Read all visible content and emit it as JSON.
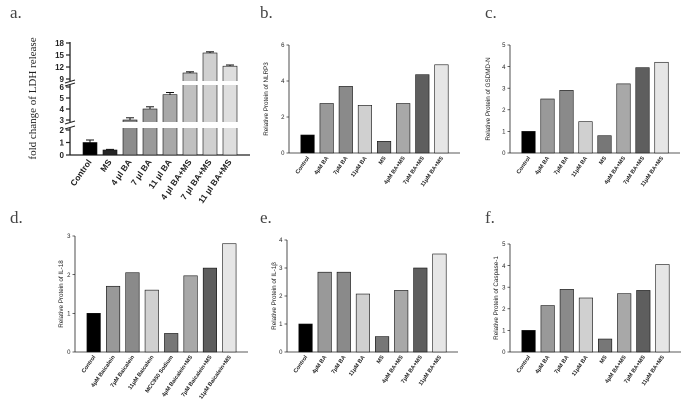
{
  "chart_data": [
    {
      "type": "bar",
      "panel_label": "a.",
      "ylabel": "fold change of LDH release",
      "categories": [
        "Control",
        "MS",
        "4 μl BA",
        "7 μl BA",
        "11 μl BA",
        "4 μl BA+MS",
        "7 μl BA+MS",
        "11 μl BA+MS"
      ],
      "values": [
        1.0,
        0.4,
        3.0,
        4.0,
        5.3,
        10.5,
        15.5,
        12.2
      ],
      "errors": [
        0.2,
        0.05,
        0.2,
        0.2,
        0.2,
        0.3,
        0.3,
        0.3
      ],
      "colors": [
        "#000000",
        "#262626",
        "#8c8c8c",
        "#9a9a9a",
        "#a8a8a8",
        "#c0c0c0",
        "#d0d0d0",
        "#dedede"
      ],
      "axis_breaks": [
        [
          2,
          3
        ],
        [
          7,
          9
        ]
      ],
      "yticks": [
        0,
        1,
        2,
        3,
        4,
        5,
        6,
        9,
        12,
        15,
        18
      ],
      "ylim": [
        0,
        18
      ]
    },
    {
      "type": "bar",
      "panel_label": "b.",
      "ylabel": "Relative Protein of NLRP3",
      "categories": [
        "Control",
        "4μM BA",
        "7μM BA",
        "11μM BA",
        "MS",
        "4μM BA+MS",
        "7μM BA+MS",
        "11μM BA+MS"
      ],
      "values": [
        1.0,
        2.75,
        3.7,
        2.65,
        0.65,
        2.75,
        4.35,
        4.9
      ],
      "colors": [
        "#000000",
        "#999999",
        "#8a8a8a",
        "#d0d0d0",
        "#777777",
        "#a8a8a8",
        "#5e5e5e",
        "#e6e6e6"
      ],
      "yticks": [
        0,
        2,
        4,
        6
      ],
      "ylim": [
        0,
        6
      ]
    },
    {
      "type": "bar",
      "panel_label": "c.",
      "ylabel": "Relative Protein of GSDMD-N",
      "categories": [
        "Control",
        "4μM BA",
        "7μM BA",
        "11μM BA",
        "MS",
        "4μM BA+MS",
        "7μM BA+MS",
        "11μM BA+MS"
      ],
      "values": [
        1.0,
        2.5,
        2.9,
        1.45,
        0.8,
        3.2,
        3.95,
        4.2
      ],
      "colors": [
        "#000000",
        "#999999",
        "#8a8a8a",
        "#d0d0d0",
        "#777777",
        "#a8a8a8",
        "#5e5e5e",
        "#e6e6e6"
      ],
      "yticks": [
        0,
        1,
        2,
        3,
        4,
        5
      ],
      "ylim": [
        0,
        5
      ]
    },
    {
      "type": "bar",
      "panel_label": "d.",
      "ylabel": "Relative Protein of IL-18",
      "categories": [
        "Control",
        "4μM Baicalein",
        "7μM Baicalein",
        "11μM Baicalein",
        "MCC950 Sodium",
        "4μM Baicalein+MS",
        "7μM Baicalein+MS",
        "11μM Baicalein+MS"
      ],
      "values": [
        1.0,
        1.7,
        2.05,
        1.6,
        0.48,
        1.97,
        2.17,
        2.8
      ],
      "colors": [
        "#000000",
        "#999999",
        "#8a8a8a",
        "#d0d0d0",
        "#777777",
        "#a8a8a8",
        "#5e5e5e",
        "#e6e6e6"
      ],
      "yticks": [
        0,
        1,
        2,
        3
      ],
      "ylim": [
        0,
        3
      ]
    },
    {
      "type": "bar",
      "panel_label": "e.",
      "ylabel": "Relative Protein of IL-1β",
      "categories": [
        "Control",
        "4μM BA",
        "7μM BA",
        "11μM BA",
        "MS",
        "4μM BA+MS",
        "7μM BA+MS",
        "11μM BA+MS"
      ],
      "values": [
        1.0,
        2.85,
        2.85,
        2.07,
        0.55,
        2.2,
        3.0,
        3.5
      ],
      "colors": [
        "#000000",
        "#999999",
        "#8a8a8a",
        "#d0d0d0",
        "#777777",
        "#a8a8a8",
        "#5e5e5e",
        "#e6e6e6"
      ],
      "yticks": [
        0,
        1,
        2,
        3,
        4
      ],
      "ylim": [
        0,
        4
      ]
    },
    {
      "type": "bar",
      "panel_label": "f.",
      "ylabel": "Relative Protein of Caspase-1",
      "categories": [
        "Control",
        "4μM BA",
        "7μM BA",
        "11μM BA",
        "MS",
        "4μM BA+MS",
        "7μM BA+MS",
        "11μM BA+MS"
      ],
      "values": [
        1.0,
        2.15,
        2.9,
        2.5,
        0.6,
        2.7,
        2.85,
        4.05
      ],
      "colors": [
        "#000000",
        "#999999",
        "#8a8a8a",
        "#d0d0d0",
        "#777777",
        "#a8a8a8",
        "#5e5e5e",
        "#e6e6e6"
      ],
      "yticks": [
        0,
        1,
        2,
        3,
        4,
        5
      ],
      "ylim": [
        0,
        5
      ]
    }
  ]
}
